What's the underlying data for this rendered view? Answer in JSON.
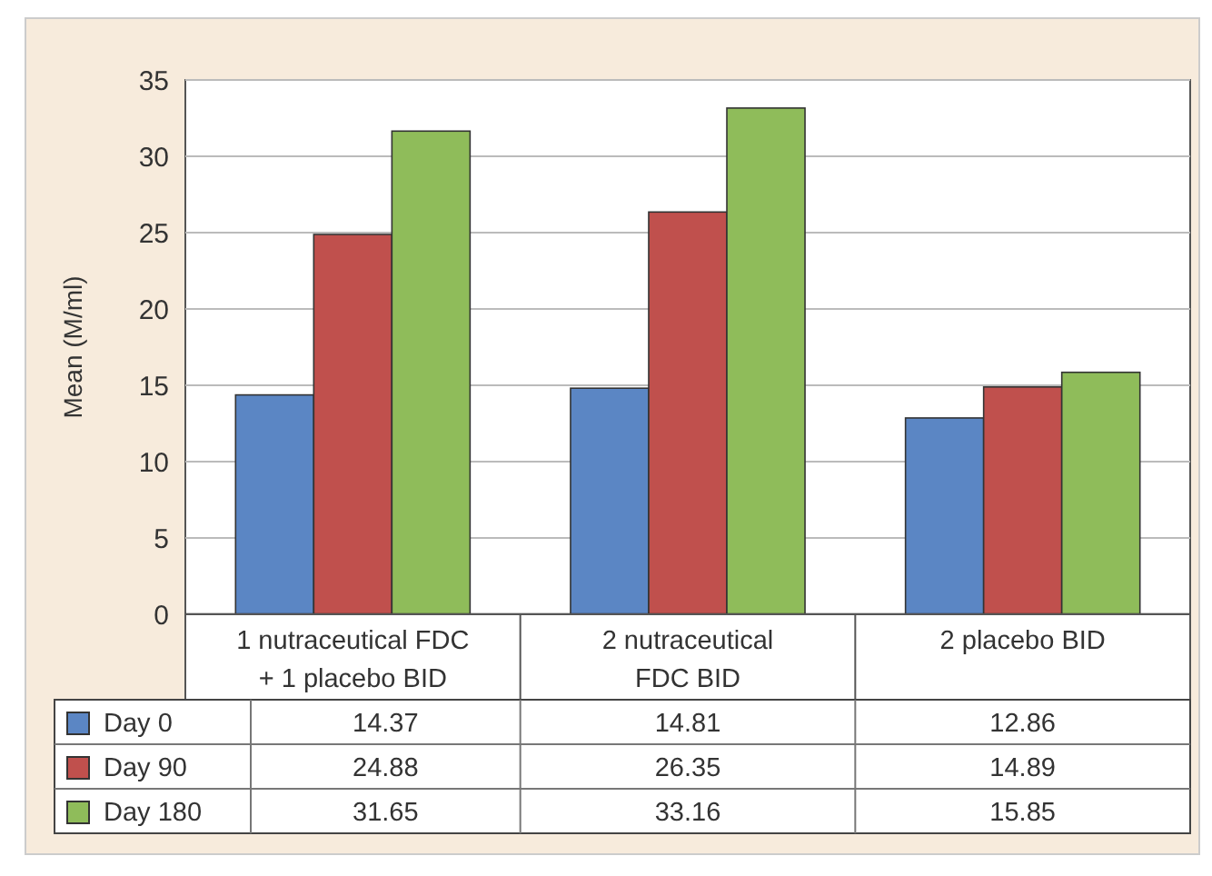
{
  "chart_data": {
    "type": "bar",
    "ylabel": "Mean (M/ml)",
    "categories": [
      "1 nutraceutical FDC\n+ 1 placebo BID",
      "2 nutraceutical\nFDC BID",
      "2 placebo BID"
    ],
    "series": [
      {
        "name": "Day 0",
        "color": "#5b86c4",
        "values": [
          14.37,
          14.81,
          12.86
        ]
      },
      {
        "name": "Day 90",
        "color": "#c0504d",
        "values": [
          24.88,
          26.35,
          14.89
        ]
      },
      {
        "name": "Day 180",
        "color": "#8fbc5a",
        "values": [
          31.65,
          33.16,
          15.85
        ]
      }
    ],
    "ylim": [
      0,
      35
    ],
    "yticks": [
      0,
      5,
      10,
      15,
      20,
      25,
      30,
      35
    ],
    "grid": "y",
    "legend": "bottom",
    "data_labels": true
  }
}
